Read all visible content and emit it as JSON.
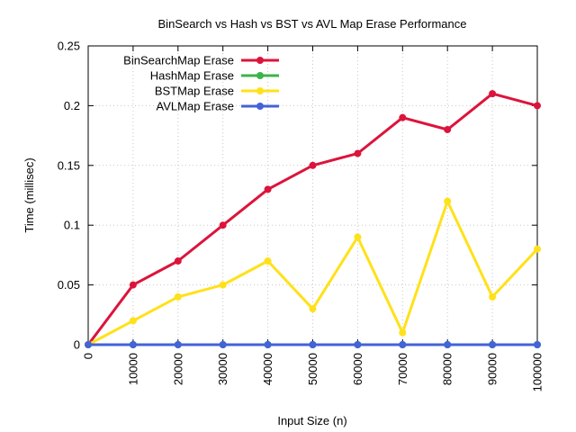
{
  "chart_data": {
    "type": "line",
    "title": "BinSearch vs Hash vs BST vs AVL Map Erase Performance",
    "xlabel": "Input Size (n)",
    "ylabel": "Time (millisec)",
    "x": [
      0,
      10000,
      20000,
      30000,
      40000,
      50000,
      60000,
      70000,
      80000,
      90000,
      100000
    ],
    "x_ticks": [
      "0",
      "10000",
      "20000",
      "30000",
      "40000",
      "50000",
      "60000",
      "70000",
      "80000",
      "90000",
      "100000"
    ],
    "y_ticks": [
      "0",
      "0.05",
      "0.1",
      "0.15",
      "0.2",
      "0.25"
    ],
    "xlim": [
      0,
      100000
    ],
    "ylim": [
      0,
      0.25
    ],
    "grid": true,
    "legend_position": "top-left",
    "series": [
      {
        "name": "BinSearchMap Erase",
        "color": "#dc143c",
        "values": [
          0,
          0.05,
          0.07,
          0.1,
          0.13,
          0.15,
          0.16,
          0.19,
          0.18,
          0.21,
          0.2
        ]
      },
      {
        "name": "HashMap Erase",
        "color": "#3cb44b",
        "values": [
          0,
          0,
          0,
          0,
          0,
          0,
          0,
          0,
          0,
          0,
          0
        ]
      },
      {
        "name": "BSTMap Erase",
        "color": "#ffe119",
        "values": [
          0,
          0.02,
          0.04,
          0.05,
          0.07,
          0.03,
          0.09,
          0.01,
          0.12,
          0.04,
          0.08
        ]
      },
      {
        "name": "AVLMap Erase",
        "color": "#4363d8",
        "values": [
          0,
          0,
          0,
          0,
          0,
          0,
          0,
          0,
          0,
          0,
          0
        ]
      }
    ]
  }
}
